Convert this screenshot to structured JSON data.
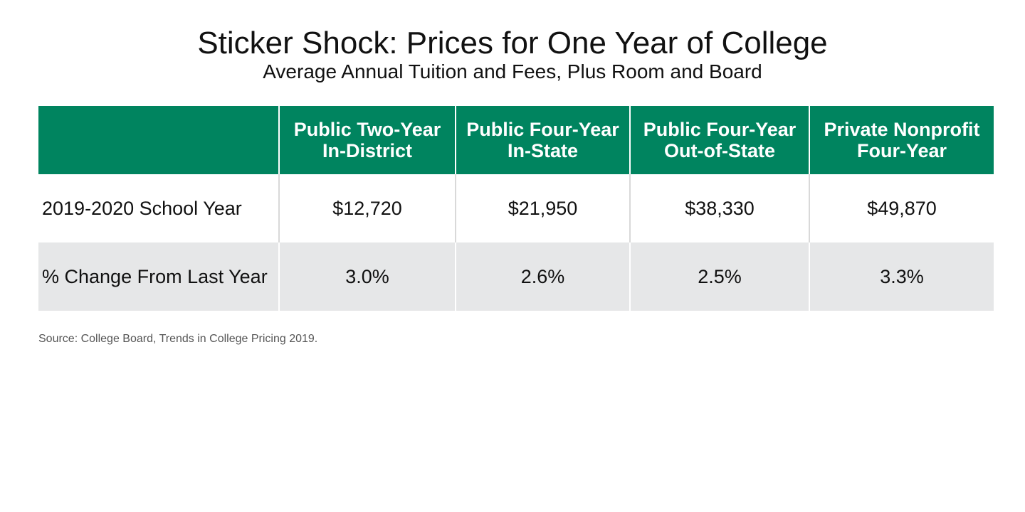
{
  "title": "Sticker Shock: Prices for One Year of College",
  "subtitle": "Average Annual Tuition and Fees, Plus Room and Board",
  "source": "Source: College Board, Trends in College Pricing 2019.",
  "colors": {
    "header_bg": "#00845f",
    "header_text": "#ffffff",
    "alt_row_bg": "#e6e7e8",
    "row_bg": "#ffffff"
  },
  "chart_data": {
    "type": "table",
    "title": "Sticker Shock: Prices for One Year of College",
    "subtitle": "Average Annual Tuition and Fees, Plus Room and Board",
    "corner_label": "",
    "columns": [
      {
        "lines": [
          "Public Two-Year",
          "In-District"
        ]
      },
      {
        "lines": [
          "Public Four-Year",
          "In-State"
        ]
      },
      {
        "lines": [
          "Public Four-Year",
          "Out-of-State"
        ]
      },
      {
        "lines": [
          "Private Nonprofit",
          "Four-Year"
        ]
      }
    ],
    "rows": [
      {
        "label": "2019-2020 School Year",
        "cells": [
          "$12,720",
          "$21,950",
          "$38,330",
          "$49,870"
        ],
        "values": [
          12720,
          21950,
          38330,
          49870
        ]
      },
      {
        "label": "% Change From Last Year",
        "cells": [
          "3.0%",
          "2.6%",
          "2.5%",
          "3.3%"
        ],
        "values": [
          3.0,
          2.6,
          2.5,
          3.3
        ]
      }
    ]
  }
}
